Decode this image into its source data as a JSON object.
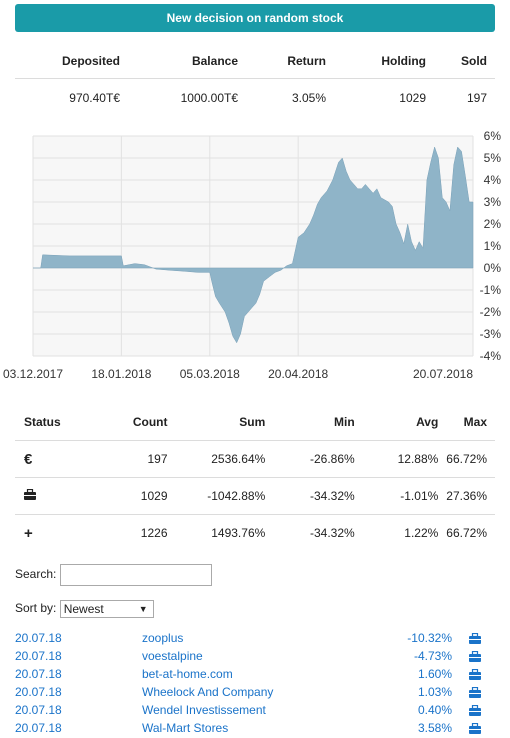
{
  "header": {
    "button_label": "New decision on random stock"
  },
  "summary": {
    "columns": [
      "Deposited",
      "Balance",
      "Return",
      "Holding",
      "Sold"
    ],
    "values": [
      "970.40T€",
      "1000.00T€",
      "3.05%",
      "1029",
      "197"
    ]
  },
  "chart_data": {
    "type": "area",
    "x_tick_labels": [
      "03.12.2017",
      "18.01.2018",
      "05.03.2018",
      "20.04.2018",
      "20.07.2018"
    ],
    "y_tick_labels": [
      "6%",
      "5%",
      "4%",
      "3%",
      "2%",
      "1%",
      "0%",
      "-1%",
      "-2%",
      "-3%",
      "-4%"
    ],
    "ylim": [
      -4,
      6
    ],
    "grid": true,
    "color": "#8fb4c8",
    "x": [
      "2017-12-03",
      "2017-12-07",
      "2017-12-08",
      "2017-12-22",
      "2018-01-18",
      "2018-01-19",
      "2018-01-25",
      "2018-01-30",
      "2018-02-05",
      "2018-02-12",
      "2018-02-20",
      "2018-02-27",
      "2018-03-05",
      "2018-03-06",
      "2018-03-08",
      "2018-03-10",
      "2018-03-13",
      "2018-03-15",
      "2018-03-17",
      "2018-03-19",
      "2018-03-21",
      "2018-03-23",
      "2018-03-25",
      "2018-03-27",
      "2018-03-29",
      "2018-03-31",
      "2018-04-02",
      "2018-04-05",
      "2018-04-08",
      "2018-04-11",
      "2018-04-14",
      "2018-04-17",
      "2018-04-20",
      "2018-04-23",
      "2018-04-26",
      "2018-04-28",
      "2018-04-30",
      "2018-05-02",
      "2018-05-05",
      "2018-05-08",
      "2018-05-11",
      "2018-05-13",
      "2018-05-15",
      "2018-05-17",
      "2018-05-19",
      "2018-05-21",
      "2018-05-23",
      "2018-05-25",
      "2018-05-27",
      "2018-05-29",
      "2018-05-31",
      "2018-06-02",
      "2018-06-04",
      "2018-06-06",
      "2018-06-08",
      "2018-06-10",
      "2018-06-12",
      "2018-06-14",
      "2018-06-16",
      "2018-06-18",
      "2018-06-20",
      "2018-06-22",
      "2018-06-24",
      "2018-06-26",
      "2018-06-28",
      "2018-06-30",
      "2018-07-02",
      "2018-07-04",
      "2018-07-06",
      "2018-07-08",
      "2018-07-10",
      "2018-07-12",
      "2018-07-14",
      "2018-07-16",
      "2018-07-18",
      "2018-07-20"
    ],
    "values": [
      0,
      0,
      0.6,
      0.55,
      0.55,
      0.1,
      0.2,
      0.15,
      -0.05,
      -0.1,
      -0.15,
      -0.2,
      -0.2,
      -0.6,
      -1.3,
      -1.6,
      -2.0,
      -2.5,
      -3.1,
      -3.4,
      -3.0,
      -2.2,
      -2.0,
      -1.8,
      -1.6,
      -1.2,
      -0.6,
      -0.4,
      -0.2,
      -0.1,
      0.1,
      0.2,
      1.4,
      1.6,
      2.0,
      2.4,
      2.9,
      3.2,
      3.5,
      4.0,
      4.8,
      5.0,
      4.4,
      4.0,
      3.8,
      3.6,
      3.6,
      3.8,
      3.6,
      3.4,
      3.6,
      3.2,
      3.1,
      3.0,
      2.8,
      2.0,
      1.6,
      1.1,
      2.0,
      1.2,
      0.8,
      1.2,
      0.9,
      4.0,
      4.8,
      5.5,
      5.0,
      3.2,
      3.0,
      2.6,
      4.7,
      5.5,
      5.3,
      4.2,
      3.0,
      3.0
    ]
  },
  "stats": {
    "columns": [
      "Status",
      "Count",
      "Sum",
      "Min",
      "Avg",
      "Max"
    ],
    "rows": [
      {
        "icon": "euro-icon",
        "symbol": "€",
        "count": "197",
        "sum": "2536.64%",
        "min": "-26.86%",
        "avg": "12.88%",
        "max": "66.72%"
      },
      {
        "icon": "briefcase-icon",
        "symbol": "briefcase",
        "count": "1029",
        "sum": "-1042.88%",
        "min": "-34.32%",
        "avg": "-1.01%",
        "max": "27.36%"
      },
      {
        "icon": "plus-icon",
        "symbol": "+",
        "count": "1226",
        "sum": "1493.76%",
        "min": "-34.32%",
        "avg": "1.22%",
        "max": "66.72%"
      }
    ]
  },
  "search": {
    "label": "Search:",
    "value": ""
  },
  "sort": {
    "label": "Sort by:",
    "selected": "Newest"
  },
  "link_color": "#1a73c9",
  "list": [
    {
      "date": "20.07.18",
      "name": "zooplus",
      "pct": "-10.32%",
      "icon": "briefcase-icon"
    },
    {
      "date": "20.07.18",
      "name": "voestalpine",
      "pct": "-4.73%",
      "icon": "briefcase-icon"
    },
    {
      "date": "20.07.18",
      "name": "bet-at-home.com",
      "pct": "1.60%",
      "icon": "briefcase-icon"
    },
    {
      "date": "20.07.18",
      "name": "Wheelock And Company",
      "pct": "1.03%",
      "icon": "briefcase-icon"
    },
    {
      "date": "20.07.18",
      "name": "Wendel Investissement",
      "pct": "0.40%",
      "icon": "briefcase-icon"
    },
    {
      "date": "20.07.18",
      "name": "Wal-Mart Stores",
      "pct": "3.58%",
      "icon": "briefcase-icon"
    }
  ]
}
